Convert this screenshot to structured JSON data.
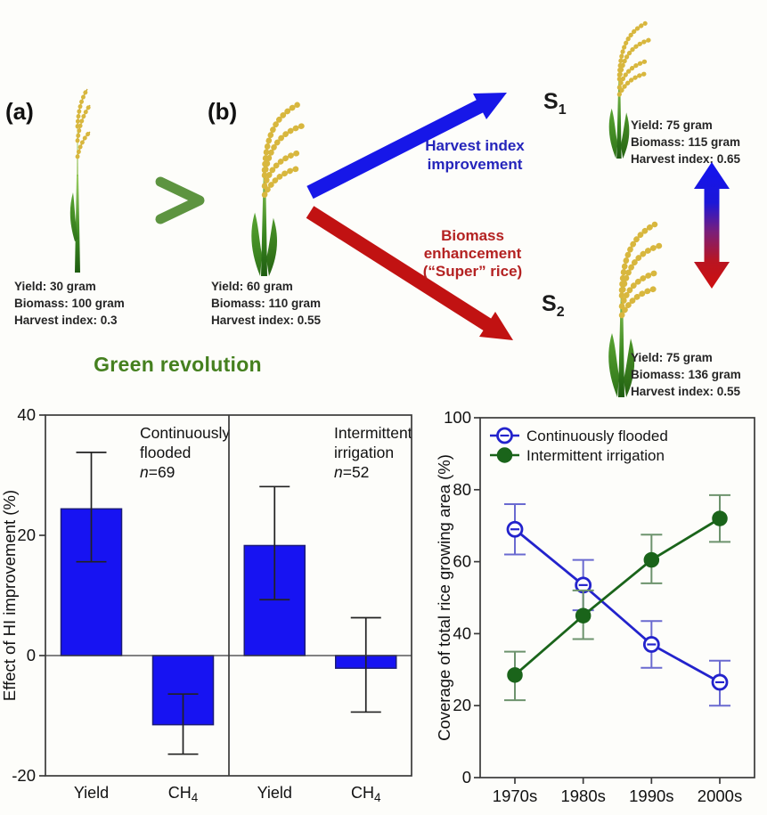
{
  "diagram": {
    "label_a": "(a)",
    "label_b": "(b)",
    "caption": "Green revolution",
    "s1": {
      "base": "S",
      "sub": "1"
    },
    "s2": {
      "base": "S",
      "sub": "2"
    },
    "plant_a_stats": [
      "Yield: 30 gram",
      "Biomass: 100 gram",
      "Harvest index: 0.3"
    ],
    "plant_b_stats": [
      "Yield: 60 gram",
      "Biomass: 110 gram",
      "Harvest index: 0.55"
    ],
    "s1_stats": [
      "Yield: 75 gram",
      "Biomass: 115 gram",
      "Harvest index: 0.65"
    ],
    "s2_stats": [
      "Yield: 75 gram",
      "Biomass: 136 gram",
      "Harvest index: 0.55"
    ],
    "hi_arrow_label": [
      "Harvest index",
      "improvement"
    ],
    "biomass_arrow_label": [
      "Biomass",
      "enhancement",
      "(“Super” rice)"
    ],
    "colors": {
      "hi_arrow": "#1717e8",
      "biomass_arrow": "#c11212",
      "hi_text": "#2525bb",
      "biomass_text": "#b42222",
      "caption_green": "#45801f",
      "transition_arrow_green": "#6fa24e",
      "gradient_arrow_top": "#1313f0",
      "gradient_arrow_bottom": "#cf0f0f"
    }
  },
  "chart_data": [
    {
      "type": "bar",
      "ylabel": "Effect of HI improvement (%)",
      "ylim": [
        -20,
        40
      ],
      "yticks": [
        40,
        20,
        0,
        -20
      ],
      "bar_color": "#1713f2",
      "bar_border": "#1c1c78",
      "error_color": "#222222",
      "panels": [
        {
          "annotation_lines": [
            "Continuously",
            "flooded",
            "n=69"
          ],
          "bars": [
            {
              "category": "Yield",
              "value": 24.4,
              "err_low": 15.6,
              "err_high": 33.8
            },
            {
              "category": "CH_4",
              "value": -11.5,
              "err_low": -16.4,
              "err_high": -6.4
            }
          ]
        },
        {
          "annotation_lines": [
            "Intermittent",
            "irrigation",
            "n=52"
          ],
          "bars": [
            {
              "category": "Yield",
              "value": 18.3,
              "err_low": 9.3,
              "err_high": 28.1
            },
            {
              "category": "CH_4",
              "value": -2.1,
              "err_low": -9.4,
              "err_high": 6.3
            }
          ]
        }
      ]
    },
    {
      "type": "line",
      "ylabel": "Coverage of total rice growing area (%)",
      "ylim": [
        0,
        100
      ],
      "yticks": [
        0,
        20,
        40,
        60,
        80,
        100
      ],
      "categories": [
        "1970s",
        "1980s",
        "1990s",
        "2000s"
      ],
      "legend_position": "top-left",
      "series": [
        {
          "name": "Continuously flooded",
          "marker": "open-circle",
          "color": "#2323cc",
          "error_color": "#6a6ad0",
          "values": [
            69,
            53.5,
            37,
            26.5
          ],
          "err_low": [
            62,
            46.5,
            30.5,
            20
          ],
          "err_high": [
            76,
            60.5,
            43.5,
            32.5
          ]
        },
        {
          "name": "Intermittent irrigation",
          "marker": "filled-circle",
          "color": "#1a641a",
          "error_color": "#6d936d",
          "values": [
            28.5,
            45,
            60.5,
            72
          ],
          "err_low": [
            21.5,
            38.5,
            54,
            65.5
          ],
          "err_high": [
            35,
            52,
            67.5,
            78.5
          ]
        }
      ]
    }
  ]
}
